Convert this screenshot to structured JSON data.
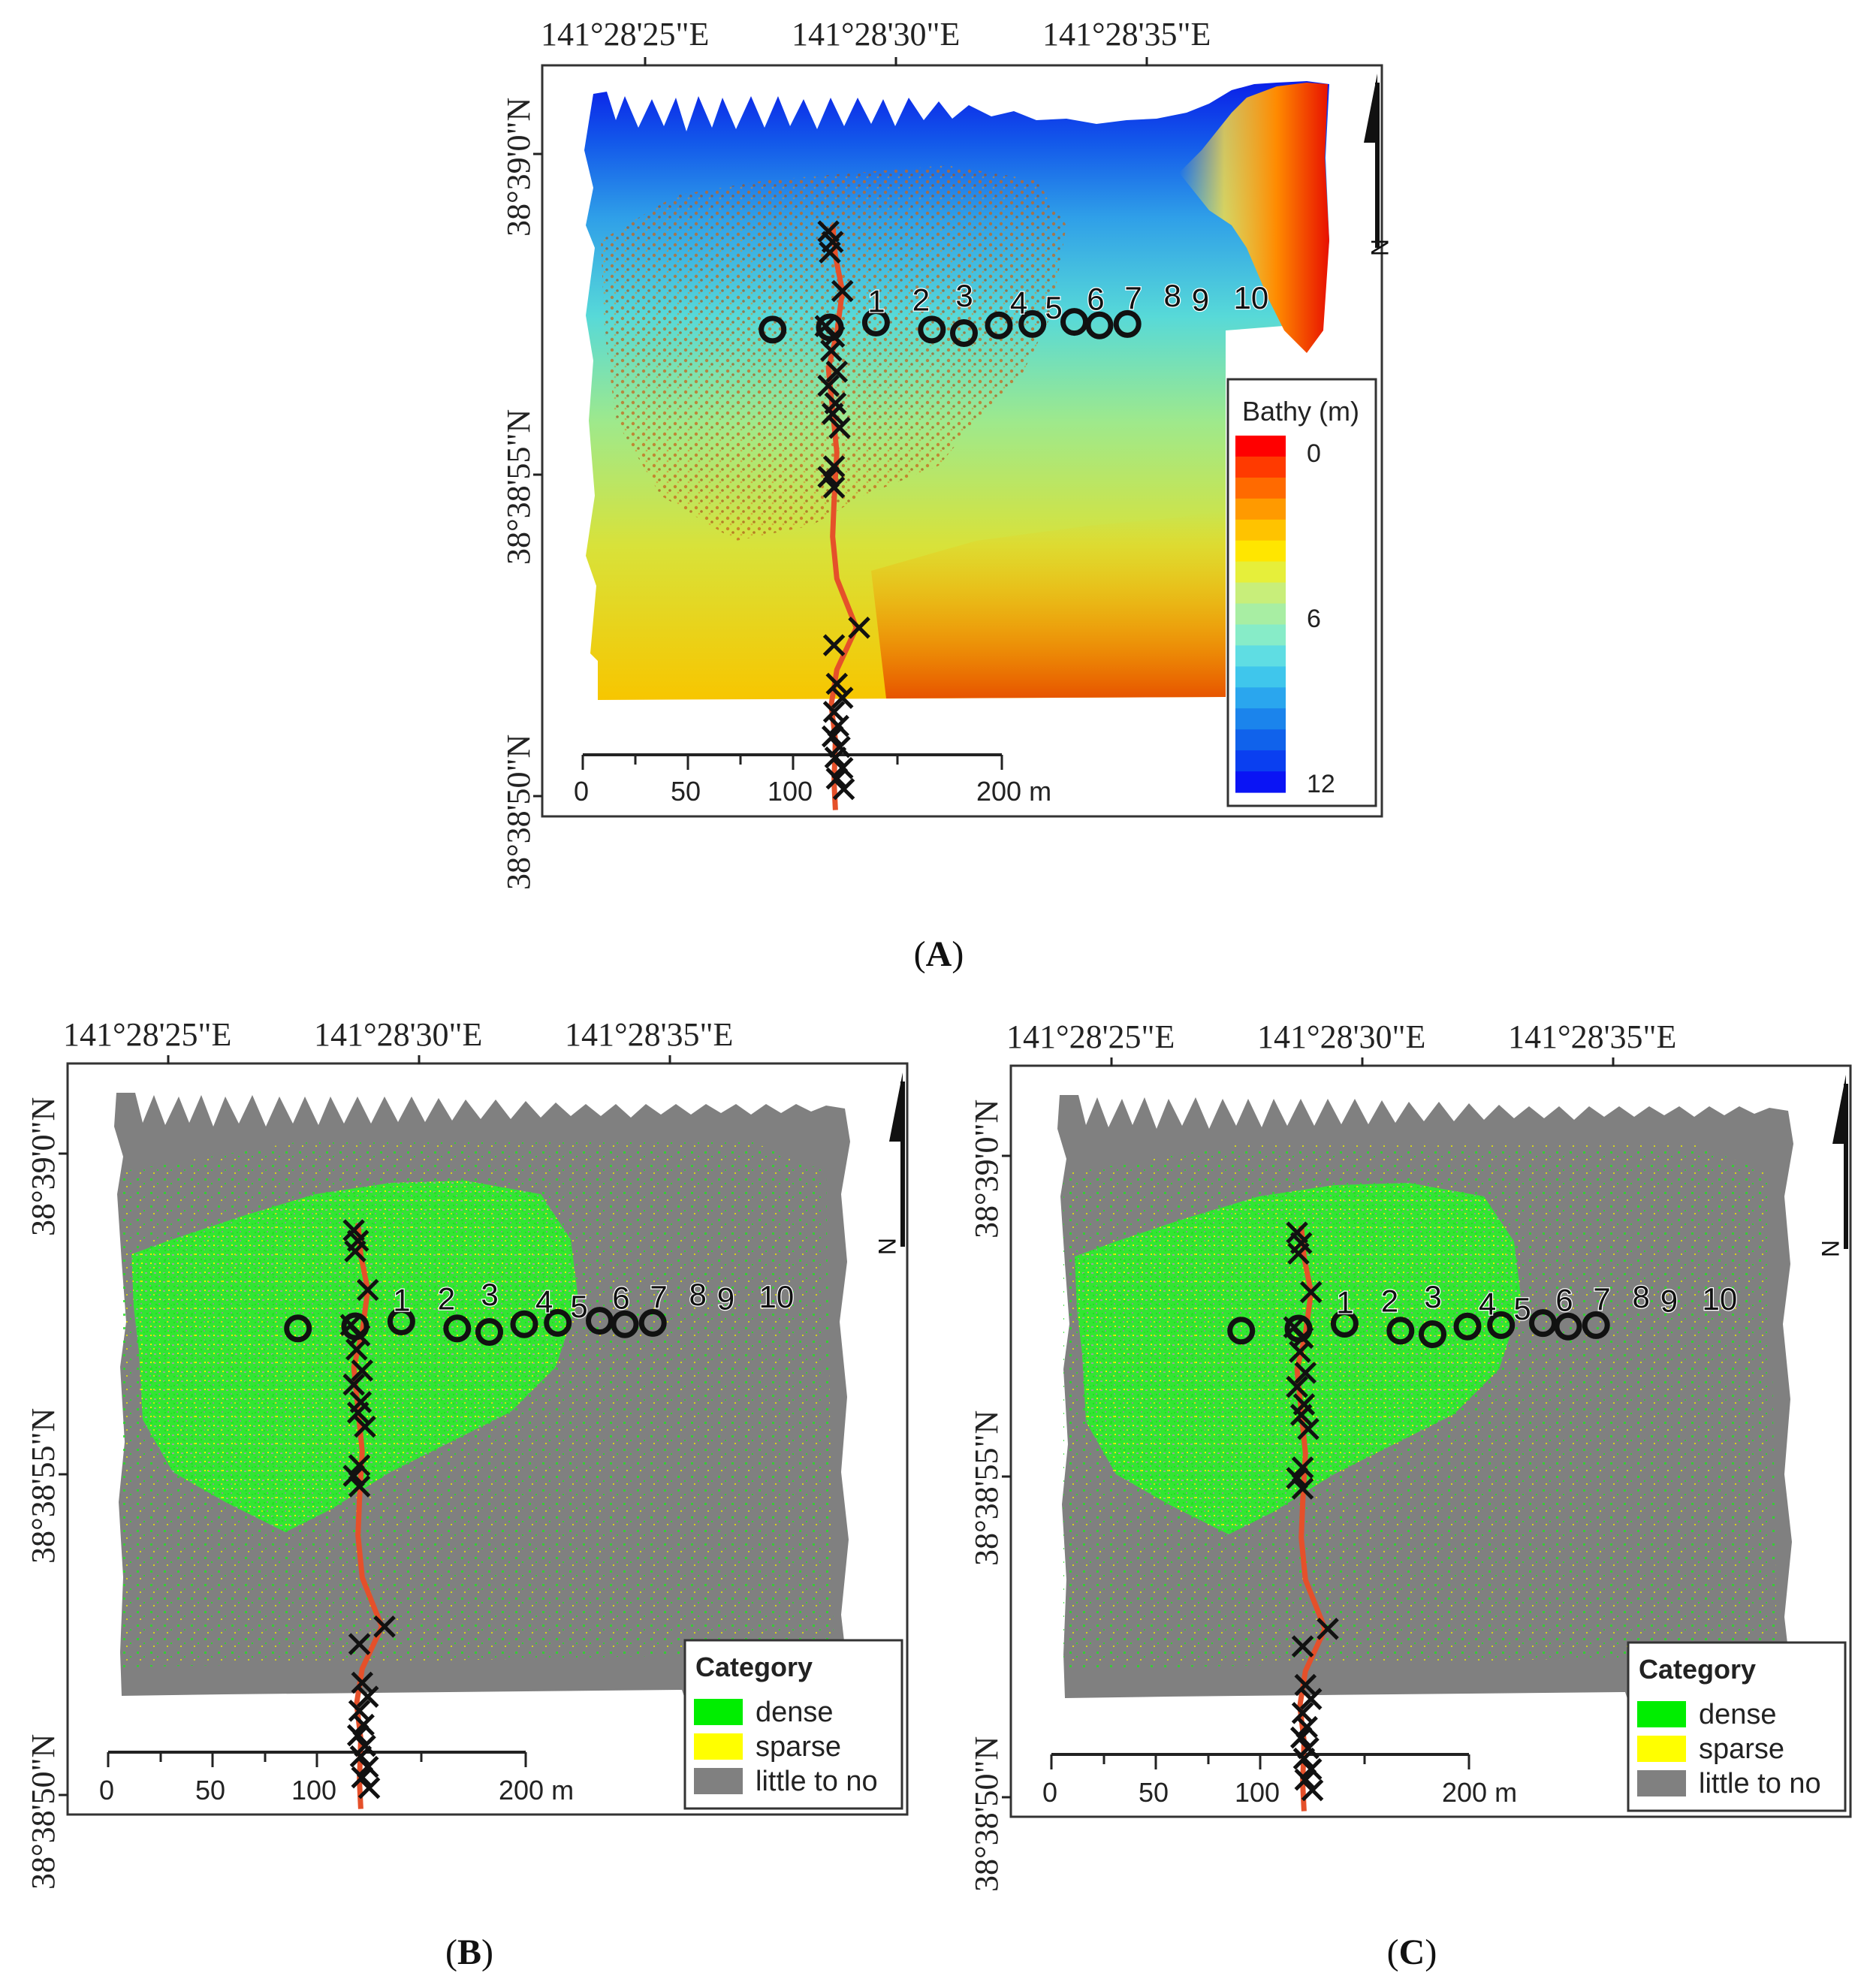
{
  "figure": {
    "panels": [
      {
        "id": "A",
        "caption_letter": "A",
        "lon_labels": [
          "141°28'25\"E",
          "141°28'30\"E",
          "141°28'35\"E"
        ],
        "lat_labels": [
          "38°39'0\"N",
          "38°38'55\"N",
          "38°38'50\"N"
        ],
        "north_arrow": "N",
        "scale": {
          "ticks": [
            "0",
            "50",
            "100",
            "200 m"
          ]
        },
        "legend": {
          "type": "bathymetry",
          "title": "Bathy (m)",
          "labels": [
            "0",
            "6",
            "12"
          ],
          "colors": [
            "#ff0000",
            "#ff3a00",
            "#ff6a00",
            "#ff9a00",
            "#ffc300",
            "#ffe600",
            "#e6ef3a",
            "#c8ee7a",
            "#a8eea3",
            "#87ecc8",
            "#5fdde3",
            "#3fc6ec",
            "#2aa6ee",
            "#1b84ec",
            "#1062eb",
            "#0a3ff0",
            "#0a14f5"
          ]
        },
        "stations": [
          "1",
          "2",
          "3",
          "4",
          "5",
          "6",
          "7",
          "8",
          "9",
          "10"
        ]
      },
      {
        "id": "B",
        "caption_letter": "B",
        "lon_labels": [
          "141°28'25\"E",
          "141°28'30\"E",
          "141°28'35\"E"
        ],
        "lat_labels": [
          "38°39'0\"N",
          "38°38'55\"N",
          "38°38'50\"N"
        ],
        "north_arrow": "N",
        "scale": {
          "ticks": [
            "0",
            "50",
            "100",
            "200 m"
          ]
        },
        "legend": {
          "type": "category",
          "title": "Category",
          "items": [
            {
              "label": "dense",
              "color": "#00ee00"
            },
            {
              "label": "sparse",
              "color": "#ffff00"
            },
            {
              "label": "little to no",
              "color": "#808080"
            }
          ]
        },
        "stations": [
          "1",
          "2",
          "3",
          "4",
          "5",
          "6",
          "7",
          "8",
          "9",
          "10"
        ]
      },
      {
        "id": "C",
        "caption_letter": "C",
        "lon_labels": [
          "141°28'25\"E",
          "141°28'30\"E",
          "141°28'35\"E"
        ],
        "lat_labels": [
          "38°39'0\"N",
          "38°38'55\"N",
          "38°38'50\"N"
        ],
        "north_arrow": "N",
        "scale": {
          "ticks": [
            "0",
            "50",
            "100",
            "200 m"
          ]
        },
        "legend": {
          "type": "category",
          "title": "Category",
          "items": [
            {
              "label": "dense",
              "color": "#00ee00"
            },
            {
              "label": "sparse",
              "color": "#ffff00"
            },
            {
              "label": "little to no",
              "color": "#808080"
            }
          ]
        },
        "stations": [
          "1",
          "2",
          "3",
          "4",
          "5",
          "6",
          "7",
          "8",
          "9",
          "10"
        ]
      }
    ],
    "colors": {
      "transect_line": "#e5502a",
      "marker": "#111111",
      "little_to_no": "#808080",
      "dense": "#00ee00",
      "sparse": "#ffff00"
    }
  }
}
